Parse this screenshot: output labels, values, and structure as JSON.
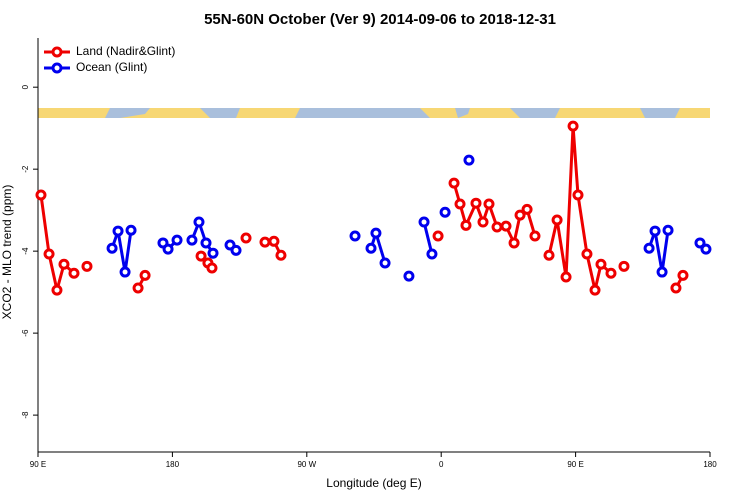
{
  "chart_data": {
    "type": "line",
    "title": "55N-60N October (Ver 9)   2014-09-06 to 2018-12-31",
    "xlabel": "Longitude (deg E)",
    "ylabel": "XCO2 - MLO trend (ppm)",
    "xlim": [
      90,
      540
    ],
    "ylim": [
      -8.9,
      1.2
    ],
    "xticks": [
      {
        "value": 90,
        "label": "90 E"
      },
      180,
      {
        "value": 270,
        "label": "90 W"
      },
      {
        "value": 360,
        "label": "0"
      },
      {
        "value": 450,
        "label": "90 E"
      },
      {
        "value": 540,
        "label": "180"
      }
    ],
    "yticks": [
      0,
      -2,
      -4,
      -6,
      -8
    ],
    "legend": "top-left",
    "series": [
      {
        "name": "Land (Nadir&Glint)",
        "color": "#ee0000",
        "x": [
          92,
          97.4,
          102.7,
          107.4,
          114.1,
          null,
          122.8,
          null,
          157,
          161.7,
          null,
          199.2,
          203.8,
          206.5,
          null,
          229.3,
          null,
          242,
          248,
          252.7,
          null,
          357.9,
          null,
          368.6,
          372.6,
          376.6,
          383.3,
          388,
          392,
          397.4,
          403.4,
          408.8,
          412.8,
          417.5,
          422.8,
          null,
          432.2,
          437.6,
          443.6,
          448.3,
          451.6,
          457.6,
          463,
          467,
          473.7,
          null,
          482.4,
          null,
          517.2,
          521.9
        ],
        "values": [
          -2.63,
          -4.07,
          -4.95,
          -4.32,
          -4.54,
          null,
          -4.37,
          null,
          -4.9,
          -4.59,
          null,
          -4.12,
          -4.29,
          -4.41,
          null,
          -3.68,
          null,
          -3.78,
          -3.76,
          -4.1,
          null,
          -3.63,
          null,
          -2.34,
          -2.85,
          -3.37,
          -2.83,
          -3.29,
          -2.85,
          -3.41,
          -3.39,
          -3.8,
          -3.12,
          -2.98,
          -3.63,
          null,
          -4.1,
          -3.24,
          -4.63,
          -0.95,
          -2.63,
          -4.07,
          -4.95,
          -4.32,
          -4.54,
          null,
          -4.37,
          null,
          -4.9,
          -4.59
        ]
      },
      {
        "name": "Ocean (Glint)",
        "color": "#0000ee",
        "x": [
          139.6,
          143.6,
          148.3,
          152.3,
          null,
          173.7,
          177.1,
          183.1,
          null,
          193.1,
          197.8,
          202.5,
          207.2,
          null,
          218.6,
          222.6,
          null,
          302.3,
          null,
          313,
          316.3,
          322.4,
          null,
          338.4,
          null,
          348.5,
          353.8,
          null,
          362.6,
          null,
          378.6,
          null,
          499.2,
          503.2,
          507.9,
          511.9,
          null,
          533.3,
          537.3
        ],
        "values": [
          -3.93,
          -3.51,
          -4.51,
          -3.49,
          null,
          -3.8,
          -3.95,
          -3.73,
          null,
          -3.73,
          -3.29,
          -3.8,
          -4.05,
          null,
          -3.85,
          -3.98,
          null,
          -3.63,
          null,
          -3.93,
          -3.56,
          -4.29,
          null,
          -4.61,
          null,
          -3.29,
          -4.07,
          null,
          -3.05,
          null,
          -1.78,
          null,
          -3.93,
          -3.51,
          -4.51,
          -3.49,
          null,
          -3.8,
          -3.95
        ]
      }
    ]
  }
}
